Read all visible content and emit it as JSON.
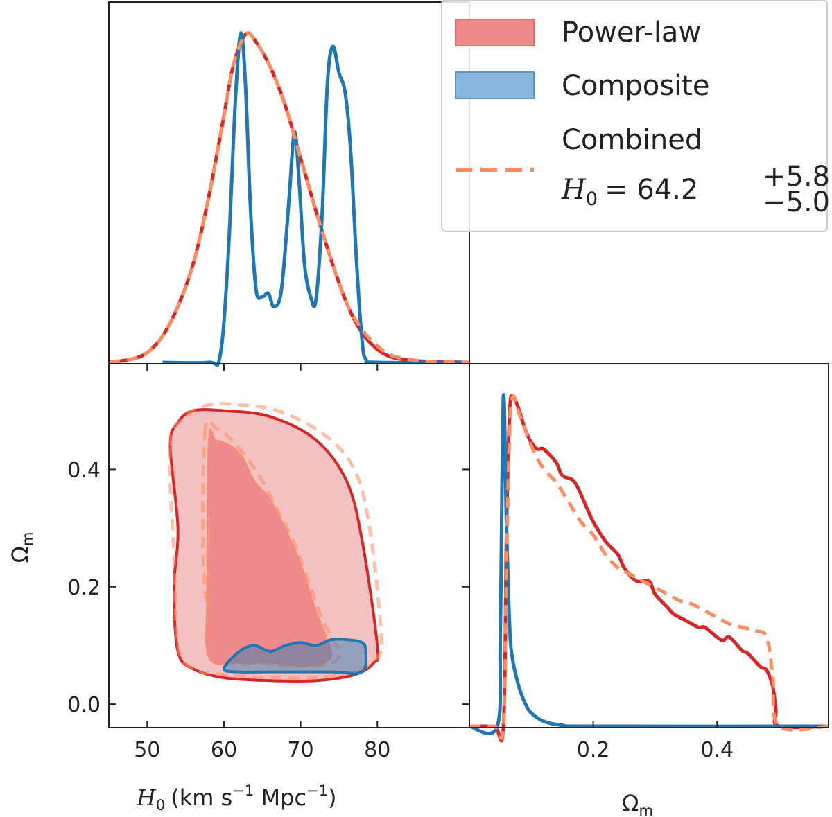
{
  "chart_data": {
    "type": "corner",
    "parameters": [
      "H0",
      "Omega_m"
    ],
    "legend": {
      "entries": [
        {
          "label": "Power-law",
          "color": "#d62728",
          "style": "filled"
        },
        {
          "label": "Composite",
          "color": "#1f77b4",
          "style": "filled"
        },
        {
          "label": "Combined",
          "color": "#fc8d62",
          "style": "dashed"
        }
      ],
      "result_symbol": "H",
      "result_subscript": "0",
      "result_eq": "= 64.2",
      "result_plus": "+5.8",
      "result_minus": "−5.0",
      "location": "top-right"
    },
    "h0_axis": {
      "range": [
        45,
        92
      ],
      "ticks": [
        50,
        60,
        70,
        80
      ],
      "tick_labels": [
        "50",
        "60",
        "70",
        "80"
      ],
      "label_symbol": "H",
      "label_sub": "0",
      "label_units_prefix": "(km s",
      "label_sup1": "−1",
      "label_units_mid": " Mpc",
      "label_sup2": "−1",
      "label_units_end": ")"
    },
    "om_axis_2d": {
      "range": [
        -0.04,
        0.58
      ],
      "ticks": [
        0.0,
        0.2,
        0.4
      ],
      "tick_labels": [
        "0.0",
        "0.2",
        "0.4"
      ],
      "label": "Ω",
      "label_sub": "m"
    },
    "om_axis_1d": {
      "range": [
        0.0,
        0.58
      ],
      "ticks": [
        0.2,
        0.4
      ],
      "tick_labels": [
        "0.2",
        "0.4"
      ],
      "label": "Ω",
      "label_sub": "m"
    },
    "h0_marginal": {
      "power_law": {
        "x": [
          45,
          48,
          50,
          52,
          54,
          56,
          58,
          60,
          61,
          62,
          63,
          64,
          66,
          68,
          70,
          72,
          74,
          76,
          78,
          80,
          82,
          85,
          88,
          92
        ],
        "y": [
          0.0,
          0.01,
          0.03,
          0.08,
          0.17,
          0.3,
          0.5,
          0.75,
          0.88,
          0.96,
          1.0,
          0.98,
          0.9,
          0.78,
          0.62,
          0.46,
          0.31,
          0.18,
          0.09,
          0.04,
          0.015,
          0.005,
          0.002,
          0.0
        ]
      },
      "composite": {
        "x": [
          52,
          58,
          59.5,
          60.5,
          61.5,
          62.2,
          62.8,
          63.5,
          64.2,
          65,
          65.8,
          66.5,
          67.5,
          68.5,
          69.2,
          69.8,
          70.5,
          71.3,
          72,
          72.8,
          73.5,
          74.2,
          75,
          75.8,
          76.5,
          77.3,
          78,
          78.5,
          80,
          92
        ],
        "y": [
          0.0,
          0.0,
          0.02,
          0.3,
          0.8,
          1.0,
          0.85,
          0.45,
          0.22,
          0.2,
          0.21,
          0.17,
          0.22,
          0.5,
          0.7,
          0.55,
          0.3,
          0.2,
          0.19,
          0.45,
          0.85,
          0.96,
          0.88,
          0.82,
          0.65,
          0.3,
          0.07,
          0.01,
          0.0,
          0.0
        ]
      },
      "combined": {
        "x": [
          45,
          48,
          50,
          52,
          54,
          56,
          58,
          60,
          61,
          62,
          63,
          64,
          66,
          68,
          70,
          72,
          74,
          76,
          78,
          80,
          82,
          85,
          88,
          92
        ],
        "y": [
          0.0,
          0.01,
          0.03,
          0.08,
          0.17,
          0.3,
          0.5,
          0.75,
          0.88,
          0.96,
          1.0,
          0.98,
          0.9,
          0.78,
          0.62,
          0.46,
          0.31,
          0.18,
          0.1,
          0.05,
          0.02,
          0.006,
          0.002,
          0.0
        ]
      }
    },
    "om_marginal": {
      "power_law": {
        "x": [
          0.0,
          0.04,
          0.055,
          0.06,
          0.065,
          0.07,
          0.08,
          0.09,
          0.1,
          0.11,
          0.12,
          0.14,
          0.15,
          0.17,
          0.19,
          0.2,
          0.22,
          0.24,
          0.25,
          0.27,
          0.29,
          0.3,
          0.32,
          0.33,
          0.35,
          0.37,
          0.38,
          0.4,
          0.41,
          0.42,
          0.44,
          0.45,
          0.47,
          0.48,
          0.49,
          0.495,
          0.5,
          0.58
        ],
        "y": [
          0.0,
          0.0,
          0.0,
          0.6,
          0.95,
          1.0,
          0.96,
          0.9,
          0.86,
          0.84,
          0.84,
          0.8,
          0.76,
          0.74,
          0.66,
          0.62,
          0.56,
          0.52,
          0.48,
          0.44,
          0.44,
          0.4,
          0.36,
          0.34,
          0.32,
          0.3,
          0.3,
          0.27,
          0.26,
          0.27,
          0.23,
          0.22,
          0.18,
          0.17,
          0.12,
          0.05,
          0.0,
          0.0
        ]
      },
      "composite": {
        "x": [
          0.0,
          0.045,
          0.05,
          0.055,
          0.06,
          0.065,
          0.07,
          0.08,
          0.09,
          0.1,
          0.12,
          0.15,
          0.2,
          0.58
        ],
        "y": [
          0.0,
          0.0,
          0.3,
          1.0,
          0.6,
          0.3,
          0.2,
          0.12,
          0.07,
          0.04,
          0.015,
          0.003,
          0.0,
          0.0
        ]
      },
      "combined": {
        "x": [
          0.0,
          0.04,
          0.055,
          0.06,
          0.065,
          0.07,
          0.08,
          0.1,
          0.12,
          0.14,
          0.16,
          0.18,
          0.2,
          0.22,
          0.24,
          0.26,
          0.28,
          0.3,
          0.32,
          0.34,
          0.36,
          0.38,
          0.4,
          0.42,
          0.44,
          0.46,
          0.48,
          0.49,
          0.5,
          0.58
        ],
        "y": [
          0.0,
          0.0,
          0.0,
          0.5,
          0.9,
          1.0,
          0.95,
          0.85,
          0.78,
          0.74,
          0.68,
          0.62,
          0.58,
          0.52,
          0.48,
          0.46,
          0.44,
          0.42,
          0.4,
          0.38,
          0.37,
          0.35,
          0.33,
          0.31,
          0.3,
          0.29,
          0.27,
          0.15,
          0.0,
          0.0
        ]
      }
    },
    "joint_2d": {
      "power_law_outer": {
        "h0": [
          53,
          54,
          56,
          60,
          66,
          72,
          76,
          78,
          80,
          79.5,
          77,
          72,
          66,
          60,
          56,
          54,
          53.5,
          54,
          53
        ],
        "om": [
          0.44,
          0.48,
          0.5,
          0.5,
          0.49,
          0.45,
          0.38,
          0.28,
          0.1,
          0.07,
          0.05,
          0.04,
          0.04,
          0.045,
          0.06,
          0.09,
          0.2,
          0.3,
          0.44
        ]
      },
      "power_law_inner": {
        "h0": [
          58,
          59,
          61,
          62.5,
          64,
          66,
          68,
          70,
          72,
          74,
          73,
          70,
          66,
          62,
          58,
          57.8,
          58
        ],
        "om": [
          0.45,
          0.45,
          0.44,
          0.42,
          0.38,
          0.35,
          0.3,
          0.24,
          0.16,
          0.09,
          0.07,
          0.065,
          0.07,
          0.07,
          0.08,
          0.2,
          0.45
        ]
      },
      "composite_outer": {
        "h0": [
          60,
          62,
          64,
          66,
          68,
          70,
          72,
          74,
          76,
          78,
          78.5,
          78,
          74,
          70,
          66,
          62,
          60
        ],
        "om": [
          0.06,
          0.09,
          0.1,
          0.09,
          0.1,
          0.105,
          0.1,
          0.11,
          0.11,
          0.105,
          0.09,
          0.055,
          0.055,
          0.055,
          0.055,
          0.055,
          0.06
        ]
      },
      "combined_outer": {
        "h0": [
          53,
          55,
          58,
          62,
          67,
          73,
          77,
          79,
          80.5,
          80,
          77,
          72,
          66,
          60,
          56,
          54,
          53.5,
          53
        ],
        "om": [
          0.44,
          0.49,
          0.51,
          0.51,
          0.5,
          0.46,
          0.4,
          0.3,
          0.12,
          0.08,
          0.055,
          0.045,
          0.045,
          0.05,
          0.06,
          0.1,
          0.25,
          0.44
        ]
      },
      "combined_inner": {
        "h0": [
          57.5,
          59,
          61,
          63,
          65,
          67,
          69,
          71,
          73,
          75,
          74,
          70,
          65,
          60,
          57.5,
          57.5
        ],
        "om": [
          0.46,
          0.47,
          0.45,
          0.42,
          0.38,
          0.33,
          0.28,
          0.21,
          0.14,
          0.09,
          0.07,
          0.065,
          0.07,
          0.08,
          0.2,
          0.46
        ]
      }
    },
    "colors": {
      "power_law": "#d62728",
      "composite": "#1f77b4",
      "combined": "#fc8d62"
    }
  }
}
